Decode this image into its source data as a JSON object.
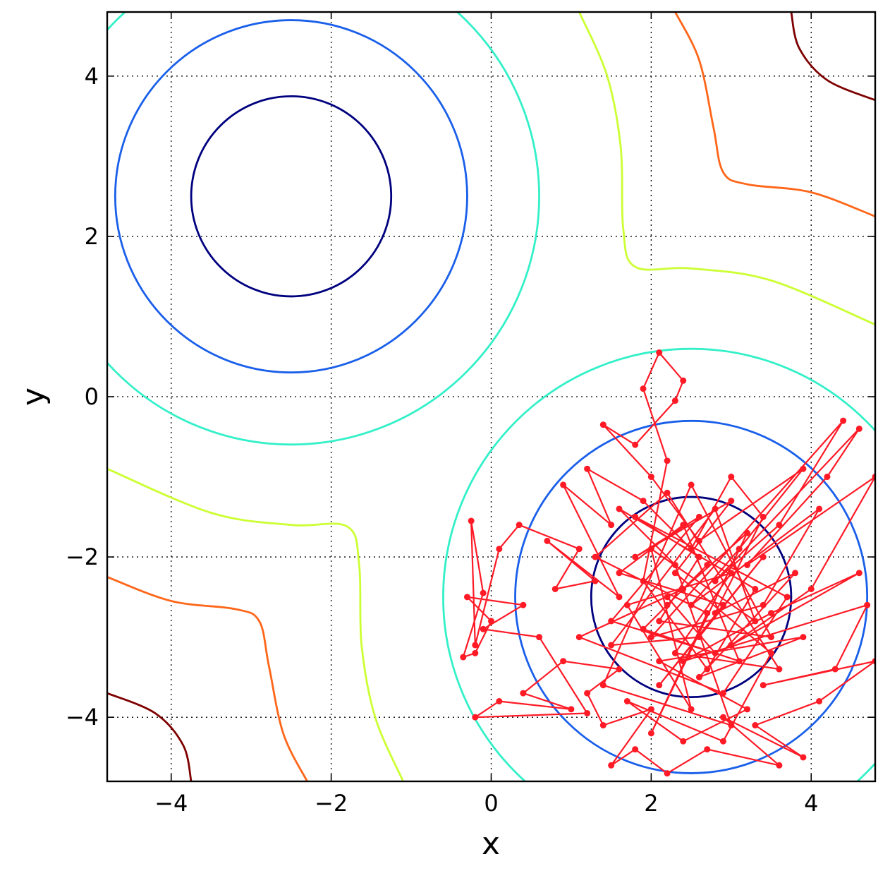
{
  "chart_data": {
    "type": "line",
    "title": "",
    "xlabel": "x",
    "ylabel": "y",
    "xlim": [
      -4.8,
      4.8
    ],
    "ylim": [
      -4.8,
      4.8
    ],
    "grid": true,
    "legend": "none",
    "x_ticks": [
      -4,
      -2,
      0,
      2,
      4
    ],
    "y_ticks": [
      -4,
      -2,
      0,
      2,
      4
    ],
    "x_tick_labels": [
      "−4",
      "−2",
      "0",
      "2",
      "4"
    ],
    "y_tick_labels": [
      "−4",
      "−2",
      "0",
      "2",
      "4"
    ],
    "contour_colors": [
      "#00007f",
      "#1a5fea",
      "#33f0c8",
      "#ccff33",
      "#ff6619",
      "#7f0000"
    ],
    "walk_color": "#ff1a26",
    "wells": [
      {
        "center": [
          -2.5,
          2.5
        ],
        "radii": [
          1.25,
          2.2,
          3.1
        ],
        "colors": [
          "#00007f",
          "#1a5fea",
          "#33f0c8"
        ]
      },
      {
        "center": [
          2.5,
          -2.5
        ],
        "radii": [
          1.25,
          2.2,
          3.1
        ],
        "colors": [
          "#00007f",
          "#1a5fea",
          "#33f0c8"
        ]
      }
    ],
    "contour_curves": [
      {
        "color": "#ccff33",
        "points": [
          [
            1.1,
            4.8
          ],
          [
            1.45,
            4.0
          ],
          [
            1.62,
            3.1
          ],
          [
            1.65,
            2.1
          ],
          [
            1.8,
            1.62
          ],
          [
            2.5,
            1.6
          ],
          [
            3.5,
            1.45
          ],
          [
            4.8,
            0.9
          ]
        ]
      },
      {
        "color": "#ff6619",
        "points": [
          [
            2.3,
            4.8
          ],
          [
            2.6,
            4.2
          ],
          [
            2.78,
            3.35
          ],
          [
            2.9,
            2.8
          ],
          [
            3.2,
            2.65
          ],
          [
            4.0,
            2.55
          ],
          [
            4.8,
            2.25
          ]
        ]
      },
      {
        "color": "#7f0000",
        "points": [
          [
            3.75,
            4.8
          ],
          [
            3.85,
            4.35
          ],
          [
            4.2,
            3.95
          ],
          [
            4.8,
            3.7
          ]
        ]
      },
      {
        "color": "#ccff33",
        "points": [
          [
            -4.8,
            -0.9
          ],
          [
            -3.5,
            -1.45
          ],
          [
            -2.5,
            -1.6
          ],
          [
            -1.8,
            -1.62
          ],
          [
            -1.65,
            -2.1
          ],
          [
            -1.62,
            -3.1
          ],
          [
            -1.45,
            -4.0
          ],
          [
            -1.1,
            -4.8
          ]
        ]
      },
      {
        "color": "#ff6619",
        "points": [
          [
            -4.8,
            -2.25
          ],
          [
            -4.0,
            -2.55
          ],
          [
            -3.2,
            -2.65
          ],
          [
            -2.9,
            -2.8
          ],
          [
            -2.78,
            -3.35
          ],
          [
            -2.6,
            -4.2
          ],
          [
            -2.3,
            -4.8
          ]
        ]
      },
      {
        "color": "#7f0000",
        "points": [
          [
            -4.8,
            -3.7
          ],
          [
            -4.2,
            -3.95
          ],
          [
            -3.85,
            -4.35
          ],
          [
            -3.75,
            -4.8
          ]
        ]
      }
    ],
    "series": [
      {
        "points": [
          [
            2.2,
            -2.6
          ],
          [
            2.7,
            -2.1
          ],
          [
            1.9,
            -2.9
          ],
          [
            3.1,
            -3.3
          ],
          [
            2.4,
            -1.6
          ],
          [
            1.6,
            -2.2
          ],
          [
            2.9,
            -2.6
          ],
          [
            2.1,
            -3.6
          ],
          [
            3.4,
            -2.0
          ],
          [
            2.6,
            -3.0
          ],
          [
            1.5,
            -3.1
          ],
          [
            2.8,
            -1.4
          ],
          [
            3.3,
            -2.8
          ],
          [
            2.0,
            -1.9
          ],
          [
            2.5,
            -3.9
          ],
          [
            1.7,
            -2.6
          ],
          [
            3.0,
            -2.2
          ],
          [
            2.3,
            -3.2
          ],
          [
            3.6,
            -3.4
          ],
          [
            2.2,
            -1.2
          ],
          [
            1.3,
            -2.0
          ],
          [
            2.7,
            -2.7
          ],
          [
            2.0,
            -4.2
          ],
          [
            3.2,
            -1.7
          ],
          [
            2.4,
            -2.4
          ],
          [
            1.1,
            -3.0
          ],
          [
            2.9,
            -3.7
          ],
          [
            3.7,
            -2.5
          ],
          [
            1.8,
            -1.5
          ],
          [
            2.6,
            -2.0
          ],
          [
            2.1,
            -2.8
          ],
          [
            3.5,
            -3.0
          ],
          [
            2.5,
            -1.1
          ],
          [
            1.4,
            -3.6
          ],
          [
            3.0,
            -4.1
          ],
          [
            2.3,
            -2.1
          ],
          [
            1.6,
            -1.4
          ],
          [
            3.3,
            -2.4
          ],
          [
            2.7,
            -3.4
          ],
          [
            1.9,
            -2.3
          ],
          [
            2.2,
            -0.8
          ],
          [
            1.9,
            0.1
          ],
          [
            2.1,
            0.55
          ],
          [
            2.4,
            0.2
          ],
          [
            2.3,
            -0.05
          ],
          [
            1.8,
            -0.6
          ],
          [
            1.4,
            -0.35
          ],
          [
            2.0,
            -1.0
          ],
          [
            2.6,
            -1.8
          ],
          [
            3.9,
            -0.9
          ],
          [
            3.1,
            -1.9
          ],
          [
            2.5,
            -2.6
          ],
          [
            4.1,
            -1.4
          ],
          [
            3.4,
            -2.6
          ],
          [
            2.0,
            -3.0
          ],
          [
            4.4,
            -0.3
          ],
          [
            3.6,
            -1.6
          ],
          [
            2.8,
            -2.3
          ],
          [
            4.6,
            -0.4
          ],
          [
            4.2,
            -1.0
          ],
          [
            3.2,
            -2.1
          ],
          [
            4.8,
            -1.0
          ],
          [
            4.0,
            -2.4
          ],
          [
            3.0,
            -3.1
          ],
          [
            4.6,
            -2.2
          ],
          [
            3.5,
            -2.7
          ],
          [
            2.4,
            -3.3
          ],
          [
            4.7,
            -2.6
          ],
          [
            4.3,
            -3.4
          ],
          [
            3.4,
            -3.6
          ],
          [
            4.8,
            -3.3
          ],
          [
            4.1,
            -3.8
          ],
          [
            3.3,
            -4.1
          ],
          [
            3.9,
            -4.5
          ],
          [
            2.9,
            -4.0
          ],
          [
            3.6,
            -4.6
          ],
          [
            2.7,
            -4.4
          ],
          [
            2.2,
            -4.7
          ],
          [
            1.8,
            -4.4
          ],
          [
            1.5,
            -4.6
          ],
          [
            2.0,
            -3.9
          ],
          [
            1.4,
            -4.1
          ],
          [
            1.2,
            -3.7
          ],
          [
            1.6,
            -3.4
          ],
          [
            0.9,
            -3.3
          ],
          [
            0.4,
            -3.7
          ],
          [
            1.0,
            -3.9
          ],
          [
            0.1,
            -3.8
          ],
          [
            -0.2,
            -4.0
          ],
          [
            1.2,
            -3.95
          ],
          [
            0.6,
            -3.0
          ],
          [
            -0.1,
            -2.9
          ],
          [
            0.4,
            -2.6
          ],
          [
            -0.3,
            -2.5
          ],
          [
            0.0,
            -2.8
          ],
          [
            -0.2,
            -3.2
          ],
          [
            -0.35,
            -3.25
          ],
          [
            -0.1,
            -2.45
          ],
          [
            -0.25,
            -1.55
          ],
          [
            -0.2,
            -3.1
          ],
          [
            0.1,
            -1.9
          ],
          [
            0.35,
            -1.6
          ],
          [
            1.1,
            -1.9
          ],
          [
            0.8,
            -2.4
          ],
          [
            1.3,
            -2.3
          ],
          [
            0.7,
            -1.8
          ],
          [
            1.6,
            -2.5
          ],
          [
            0.9,
            -1.1
          ],
          [
            1.5,
            -1.6
          ],
          [
            1.2,
            -0.9
          ],
          [
            1.9,
            -1.3
          ],
          [
            2.5,
            -1.9
          ],
          [
            3.0,
            -1.0
          ],
          [
            3.4,
            -1.5
          ],
          [
            2.8,
            -2.7
          ],
          [
            3.8,
            -2.2
          ],
          [
            2.6,
            -3.5
          ],
          [
            3.9,
            -3.0
          ],
          [
            2.1,
            -3.3
          ],
          [
            3.2,
            -3.9
          ],
          [
            2.4,
            -4.3
          ],
          [
            1.7,
            -3.8
          ],
          [
            2.9,
            -4.3
          ],
          [
            3.5,
            -3.2
          ],
          [
            2.3,
            -2.2
          ],
          [
            3.0,
            -1.3
          ],
          [
            1.8,
            -2.0
          ],
          [
            2.6,
            -1.5
          ],
          [
            1.5,
            -2.8
          ],
          [
            2.8,
            -3.2
          ],
          [
            2.2,
            -2.5
          ]
        ]
      }
    ]
  }
}
